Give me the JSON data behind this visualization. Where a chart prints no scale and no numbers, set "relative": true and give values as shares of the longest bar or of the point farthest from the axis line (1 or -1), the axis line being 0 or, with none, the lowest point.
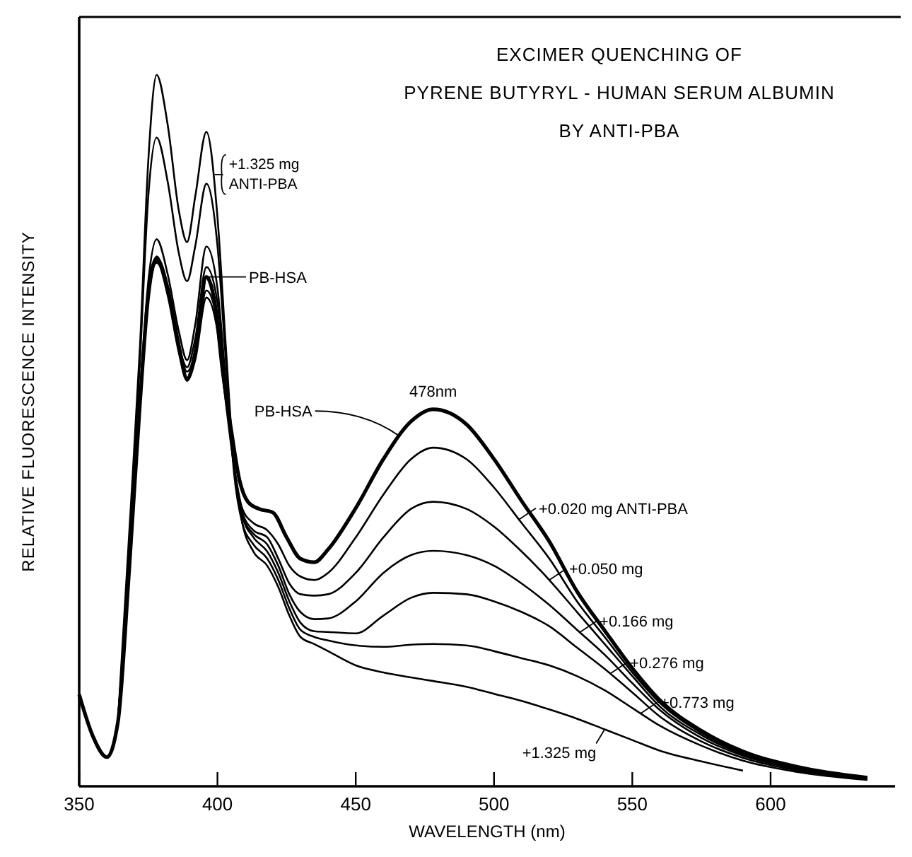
{
  "chart_data": {
    "type": "line",
    "title": "EXCIMER QUENCHING OF\nPYRENE BUTYRYL - HUMAN SERUM ALBUMIN\nBY ANTI-PBA",
    "xlabel": "WAVELENGTH   (nm)",
    "ylabel": "RELATIVE FLUORESCENCE INTENSITY",
    "relative": true,
    "xlim": [
      350,
      645
    ],
    "xticks": [
      350,
      400,
      450,
      500,
      550,
      600
    ],
    "legend": "right",
    "grid": false,
    "marker": "none",
    "line_style": "solid",
    "series": [
      {
        "name": "PB-HSA",
        "color": "#000000",
        "x": [
          350,
          355,
          360,
          364,
          368,
          372,
          375,
          378,
          382,
          386,
          389,
          392,
          396,
          399,
          402,
          405,
          408,
          411,
          415,
          420,
          425,
          430,
          435,
          440,
          450,
          460,
          470,
          478,
          490,
          500,
          510,
          520,
          530,
          540,
          550,
          560,
          575,
          590,
          610,
          635
        ],
        "values": [
          0.129,
          0.07,
          0.041,
          0.09,
          0.3,
          0.54,
          0.69,
          0.742,
          0.7,
          0.62,
          0.573,
          0.61,
          0.716,
          0.68,
          0.58,
          0.5,
          0.43,
          0.4,
          0.39,
          0.385,
          0.35,
          0.32,
          0.315,
          0.333,
          0.391,
          0.46,
          0.513,
          0.53,
          0.509,
          0.46,
          0.401,
          0.344,
          0.274,
          0.219,
          0.166,
          0.121,
          0.078,
          0.049,
          0.027,
          0.012
        ]
      },
      {
        "name": "+0.020 mg ANTI-PBA",
        "color": "#000000",
        "x": [
          364,
          368,
          372,
          375,
          378,
          382,
          386,
          389,
          392,
          396,
          400,
          403,
          406,
          409,
          413,
          418,
          422,
          426,
          430,
          435,
          440,
          450,
          460,
          470,
          478,
          490,
          500,
          510,
          520,
          530,
          540,
          550,
          560,
          575,
          590,
          610,
          635
        ],
        "values": [
          0.09,
          0.3,
          0.54,
          0.69,
          0.738,
          0.69,
          0.61,
          0.57,
          0.6,
          0.687,
          0.64,
          0.54,
          0.45,
          0.39,
          0.37,
          0.36,
          0.34,
          0.31,
          0.295,
          0.29,
          0.3,
          0.35,
          0.41,
          0.46,
          0.476,
          0.46,
          0.42,
          0.37,
          0.32,
          0.26,
          0.21,
          0.16,
          0.117,
          0.075,
          0.047,
          0.026,
          0.011
        ]
      },
      {
        "name": "+0.050 mg",
        "color": "#000000",
        "x": [
          364,
          368,
          372,
          375,
          378,
          382,
          386,
          389,
          392,
          396,
          400,
          403,
          406,
          409,
          413,
          418,
          422,
          426,
          430,
          435,
          440,
          450,
          460,
          470,
          478,
          490,
          500,
          510,
          520,
          530,
          540,
          550,
          560,
          575,
          590,
          610,
          635
        ],
        "values": [
          0.09,
          0.3,
          0.54,
          0.69,
          0.745,
          0.7,
          0.62,
          0.583,
          0.61,
          0.697,
          0.65,
          0.55,
          0.45,
          0.385,
          0.36,
          0.35,
          0.32,
          0.285,
          0.27,
          0.268,
          0.27,
          0.3,
          0.35,
          0.39,
          0.4,
          0.39,
          0.365,
          0.33,
          0.29,
          0.245,
          0.2,
          0.155,
          0.112,
          0.072,
          0.045,
          0.025,
          0.011
        ]
      },
      {
        "name": "+0.166 mg",
        "color": "#000000",
        "x": [
          364,
          368,
          372,
          375,
          378,
          382,
          386,
          389,
          392,
          396,
          400,
          403,
          406,
          409,
          413,
          418,
          422,
          426,
          430,
          435,
          440,
          450,
          460,
          470,
          478,
          490,
          500,
          510,
          520,
          530,
          540,
          550,
          560,
          575,
          590,
          610,
          635
        ],
        "values": [
          0.09,
          0.3,
          0.54,
          0.69,
          0.736,
          0.7,
          0.62,
          0.589,
          0.63,
          0.73,
          0.68,
          0.56,
          0.45,
          0.38,
          0.355,
          0.34,
          0.31,
          0.27,
          0.245,
          0.235,
          0.236,
          0.26,
          0.3,
          0.325,
          0.331,
          0.325,
          0.31,
          0.285,
          0.255,
          0.22,
          0.185,
          0.145,
          0.107,
          0.068,
          0.043,
          0.024,
          0.01
        ]
      },
      {
        "name": "+0.276 mg",
        "color": "#000000",
        "x": [
          364,
          368,
          372,
          375,
          378,
          382,
          386,
          389,
          392,
          396,
          400,
          403,
          406,
          409,
          413,
          418,
          422,
          426,
          430,
          435,
          440,
          450,
          460,
          470,
          478,
          490,
          500,
          510,
          520,
          530,
          540,
          550,
          560,
          575,
          590,
          610,
          635
        ],
        "values": [
          0.09,
          0.3,
          0.55,
          0.71,
          0.769,
          0.72,
          0.64,
          0.599,
          0.65,
          0.759,
          0.7,
          0.57,
          0.45,
          0.38,
          0.35,
          0.33,
          0.3,
          0.26,
          0.23,
          0.218,
          0.217,
          0.215,
          0.24,
          0.265,
          0.272,
          0.27,
          0.26,
          0.245,
          0.225,
          0.195,
          0.165,
          0.132,
          0.098,
          0.063,
          0.04,
          0.022,
          0.01
        ]
      },
      {
        "name": "+0.773 mg",
        "color": "#000000",
        "x": [
          364,
          368,
          372,
          375,
          378,
          382,
          386,
          389,
          392,
          396,
          400,
          403,
          406,
          409,
          413,
          418,
          422,
          426,
          430,
          435,
          440,
          450,
          460,
          470,
          478,
          490,
          500,
          510,
          520,
          530,
          540,
          550,
          560,
          575,
          590,
          610,
          635
        ],
        "values": [
          0.09,
          0.32,
          0.6,
          0.83,
          0.912,
          0.85,
          0.75,
          0.71,
          0.76,
          0.847,
          0.76,
          0.6,
          0.44,
          0.37,
          0.34,
          0.32,
          0.29,
          0.25,
          0.22,
          0.21,
          0.205,
          0.198,
          0.196,
          0.199,
          0.2,
          0.198,
          0.19,
          0.18,
          0.17,
          0.155,
          0.135,
          0.11,
          0.085,
          0.057,
          0.036,
          0.02,
          0.009
        ]
      },
      {
        "name": "+1.325 mg",
        "color": "#000000",
        "x": [
          364,
          368,
          372,
          375,
          378,
          382,
          386,
          389,
          392,
          396,
          400,
          403,
          406,
          409,
          413,
          418,
          422,
          426,
          430,
          435,
          440,
          450,
          460,
          470,
          478,
          490,
          500,
          510,
          520,
          530,
          540,
          550,
          560,
          575,
          590
        ],
        "values": [
          0.09,
          0.35,
          0.62,
          0.88,
          1.0,
          0.93,
          0.81,
          0.765,
          0.83,
          0.92,
          0.8,
          0.62,
          0.45,
          0.37,
          0.33,
          0.31,
          0.28,
          0.24,
          0.21,
          0.2,
          0.19,
          0.17,
          0.16,
          0.153,
          0.148,
          0.14,
          0.13,
          0.12,
          0.108,
          0.095,
          0.08,
          0.065,
          0.05,
          0.035,
          0.022
        ]
      }
    ],
    "annotations": [
      {
        "text": "478nm",
        "x": 478,
        "y": 0.53
      },
      {
        "text": "+1.325 mg\nANTI-PBA",
        "x": 399,
        "y": 0.86
      },
      {
        "text": "PB-HSA",
        "x": 396,
        "y": 0.716
      }
    ]
  }
}
